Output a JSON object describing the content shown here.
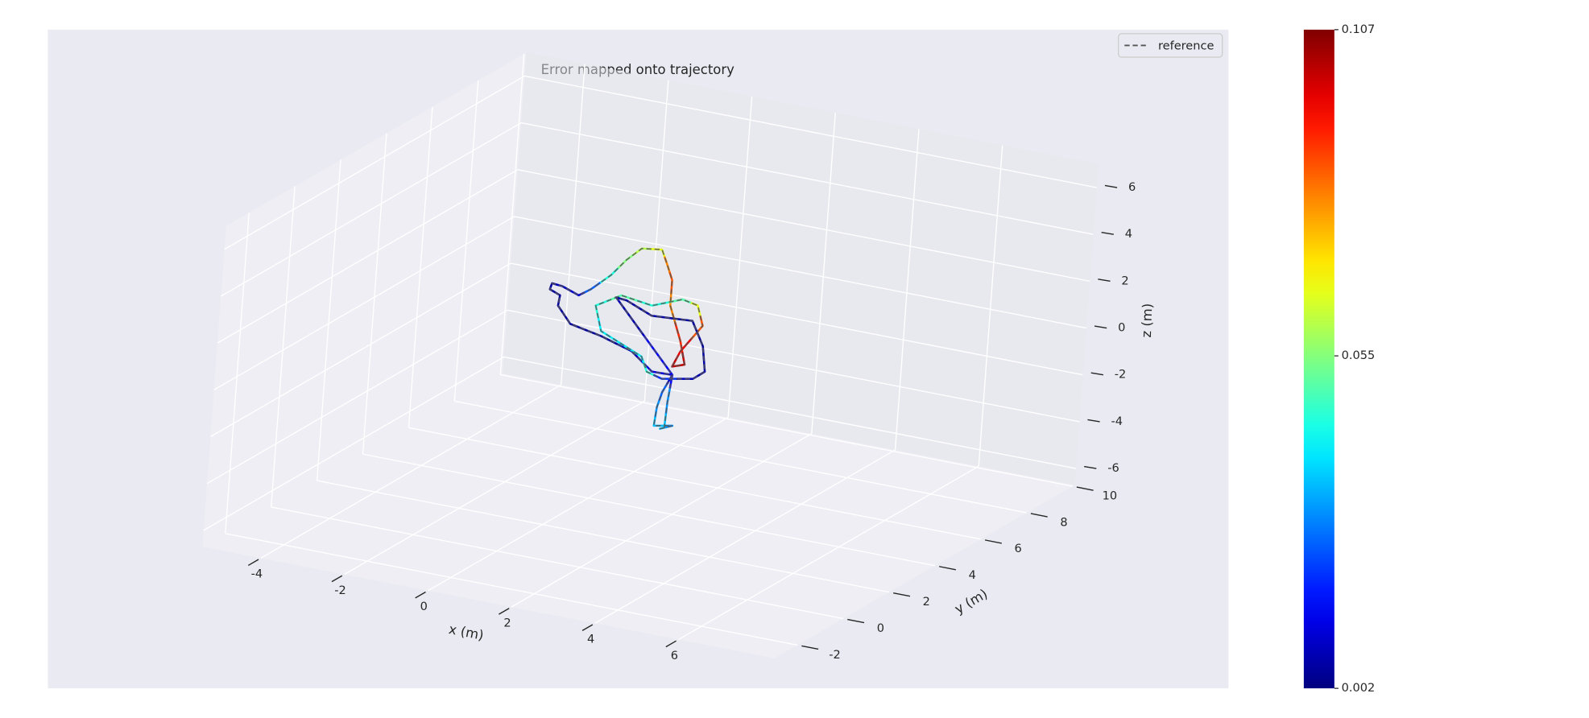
{
  "chart_data": {
    "type": "trajectory3d",
    "title": "Error mapped onto trajectory",
    "xlabel": "x (m)",
    "ylabel": "y (m)",
    "zlabel": "z (m)",
    "xlim": [
      -5.4,
      8.3
    ],
    "ylim": [
      -3,
      10.1
    ],
    "zlim": [
      -6.7,
      7
    ],
    "xticks": [
      -4,
      -2,
      0,
      2,
      4,
      6
    ],
    "yticks": [
      -2,
      0,
      2,
      4,
      6,
      8,
      10
    ],
    "zticks": [
      -6,
      -4,
      -2,
      0,
      2,
      4,
      6
    ],
    "grid": true,
    "trajectory": {
      "x": [
        1.05,
        1.34,
        0.9,
        0.94,
        1.04,
        1.25,
        0.76,
        0.25,
        -0.5,
        -1.25,
        -1.57,
        -1.54,
        -1.79,
        -1.75,
        -1.5,
        -1.1,
        -0.82,
        -0.37,
        -0.03,
        0.31,
        0.79,
        0.94,
        1.08,
        1.08,
        1.38,
        1.52,
        1.23,
        1.4,
        1.88,
        1.73,
        1.36,
        0.65,
        -0.09,
        -0.68,
        -0.51,
        0.49,
        0.64,
        1.01,
        1.74,
        2.01,
        1.92,
        1.63,
        0.66,
        0.04,
        -0.21,
        1.25,
        1.18,
        1.15
      ],
      "y": [
        5,
        5,
        5,
        5,
        5,
        5,
        5,
        5,
        5,
        5,
        5,
        5,
        5,
        5,
        5,
        5,
        5,
        5,
        5,
        5,
        5,
        5,
        5,
        5,
        5,
        5,
        5,
        5,
        5,
        5,
        5,
        5,
        5,
        5,
        5,
        5,
        5,
        5,
        5,
        5,
        5,
        5,
        5,
        5,
        5,
        5,
        5,
        5
      ],
      "z": [
        -3.94,
        -3.71,
        -3.86,
        -3.06,
        -2.38,
        -1.57,
        -1.6,
        -0.91,
        -0.52,
        -0.26,
        0.41,
        0.86,
        1.03,
        1.3,
        1.26,
        1.01,
        1.37,
        2.13,
        2.9,
        3.5,
        3.62,
        3.02,
        2.42,
        1.33,
        -0.08,
        -1.04,
        -1.22,
        -0.51,
        0.74,
        1.56,
        1.69,
        1.18,
        1.36,
        0.72,
        -0.31,
        -1.05,
        -1.65,
        -1.82,
        -1.57,
        -1.17,
        -0.11,
        0.87,
        0.75,
        1.19,
        1.23,
        -1.57,
        -2.77,
        -3.86
      ],
      "error": [
        0.035,
        0.03,
        0.035,
        0.03,
        0.025,
        0.01,
        0.012,
        0.008,
        0.005,
        0.005,
        0.005,
        0.005,
        0.005,
        0.006,
        0.008,
        0.01,
        0.025,
        0.045,
        0.055,
        0.06,
        0.065,
        0.08,
        0.085,
        0.08,
        0.09,
        0.1,
        0.1,
        0.095,
        0.085,
        0.065,
        0.05,
        0.045,
        0.05,
        0.045,
        0.04,
        0.04,
        0.045,
        0.02,
        0.008,
        0.006,
        0.005,
        0.005,
        0.006,
        0.006,
        0.007,
        0.015,
        0.03,
        0.035
      ]
    },
    "reference": {
      "name": "reference",
      "color": "#555555",
      "linestyle": "dashed"
    },
    "legend": "upper right",
    "colorbar": {
      "cmap": "jet",
      "lim": [
        0.002,
        0.107
      ],
      "ticks": [
        0.002,
        0.055,
        0.107
      ]
    }
  }
}
